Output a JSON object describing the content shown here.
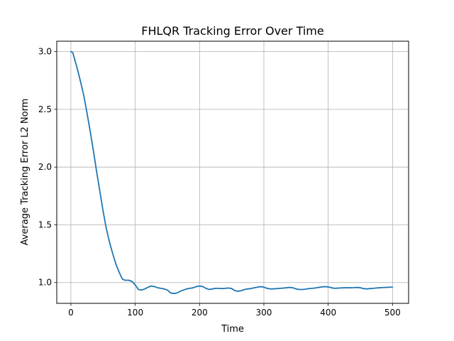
{
  "chart_data": {
    "type": "line",
    "title": "FHLQR Tracking Error Over Time",
    "xlabel": "Time",
    "ylabel": "Average Tracking Error L2 Norm",
    "xlim": [
      -22,
      525
    ],
    "ylim": [
      0.82,
      3.09
    ],
    "xticks": [
      0,
      100,
      200,
      300,
      400,
      500
    ],
    "yticks": [
      1.0,
      1.5,
      2.0,
      2.5,
      3.0
    ],
    "xtick_labels": [
      "0",
      "100",
      "200",
      "300",
      "400",
      "500"
    ],
    "ytick_labels": [
      "1.0",
      "1.5",
      "2.0",
      "2.5",
      "3.0"
    ],
    "grid": true,
    "series": [
      {
        "color": "#1f77b4",
        "x": [
          0,
          3,
          5,
          10,
          15,
          20,
          25,
          30,
          35,
          40,
          45,
          50,
          55,
          60,
          65,
          70,
          75,
          80,
          84,
          90,
          95,
          100,
          105,
          110,
          115,
          120,
          125,
          130,
          135,
          140,
          145,
          150,
          155,
          160,
          165,
          170,
          175,
          180,
          185,
          190,
          195,
          200,
          205,
          210,
          215,
          220,
          225,
          230,
          235,
          240,
          245,
          250,
          255,
          260,
          265,
          270,
          275,
          280,
          285,
          290,
          295,
          300,
          305,
          310,
          315,
          320,
          325,
          330,
          335,
          340,
          345,
          350,
          355,
          360,
          365,
          370,
          375,
          380,
          385,
          390,
          395,
          400,
          405,
          410,
          415,
          420,
          425,
          430,
          435,
          440,
          445,
          450,
          455,
          460,
          465,
          470,
          475,
          480,
          485,
          490,
          495,
          500
        ],
        "y": [
          3.0,
          2.99,
          2.95,
          2.85,
          2.74,
          2.62,
          2.47,
          2.31,
          2.14,
          1.96,
          1.79,
          1.62,
          1.47,
          1.35,
          1.25,
          1.16,
          1.09,
          1.03,
          1.02,
          1.02,
          1.01,
          0.98,
          0.94,
          0.935,
          0.945,
          0.96,
          0.97,
          0.965,
          0.955,
          0.95,
          0.945,
          0.935,
          0.91,
          0.905,
          0.91,
          0.925,
          0.935,
          0.945,
          0.95,
          0.955,
          0.965,
          0.97,
          0.965,
          0.95,
          0.94,
          0.945,
          0.95,
          0.95,
          0.948,
          0.95,
          0.953,
          0.948,
          0.93,
          0.925,
          0.93,
          0.94,
          0.945,
          0.948,
          0.955,
          0.96,
          0.965,
          0.96,
          0.95,
          0.945,
          0.945,
          0.948,
          0.95,
          0.952,
          0.955,
          0.958,
          0.955,
          0.945,
          0.94,
          0.94,
          0.943,
          0.948,
          0.95,
          0.953,
          0.958,
          0.962,
          0.965,
          0.962,
          0.955,
          0.95,
          0.952,
          0.954,
          0.955,
          0.955,
          0.955,
          0.956,
          0.958,
          0.955,
          0.948,
          0.945,
          0.948,
          0.95,
          0.953,
          0.955,
          0.957,
          0.958,
          0.96,
          0.96
        ]
      }
    ]
  }
}
